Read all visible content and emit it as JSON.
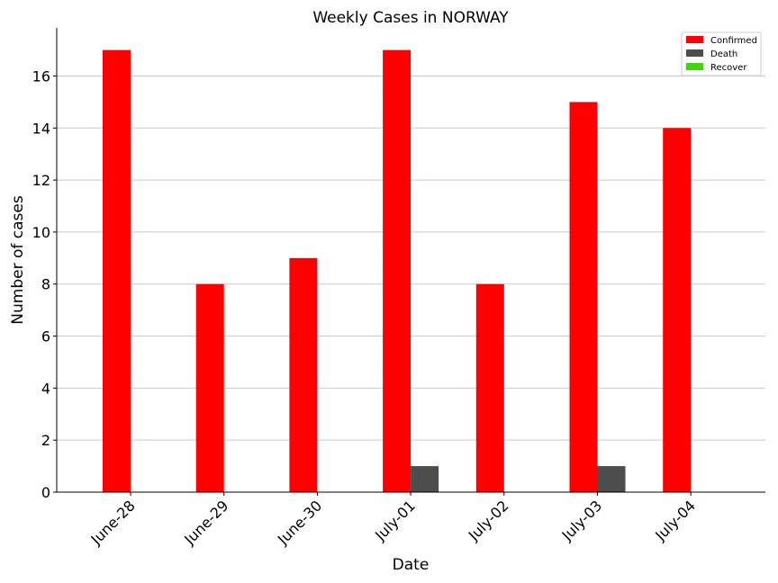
{
  "chart_data": {
    "type": "bar",
    "title": "Weekly Cases in NORWAY",
    "xlabel": "Date",
    "ylabel": "Number of cases",
    "categories": [
      "June-28",
      "June-29",
      "June-30",
      "July-01",
      "July-02",
      "July-03",
      "July-04"
    ],
    "series": [
      {
        "name": "Confirmed",
        "color": "#ff0000",
        "values": [
          17,
          8,
          9,
          17,
          8,
          15,
          14
        ]
      },
      {
        "name": "Death",
        "color": "#4d4d4d",
        "values": [
          0,
          0,
          0,
          1,
          0,
          1,
          0
        ]
      },
      {
        "name": "Recover",
        "color": "#44d40e",
        "values": [
          0,
          0,
          0,
          0,
          0,
          0,
          0
        ]
      }
    ],
    "ylim": [
      0,
      17.85
    ],
    "yticks": [
      0,
      2,
      4,
      6,
      8,
      10,
      12,
      14,
      16
    ],
    "grid": "horizontal",
    "legend": "top-right"
  }
}
